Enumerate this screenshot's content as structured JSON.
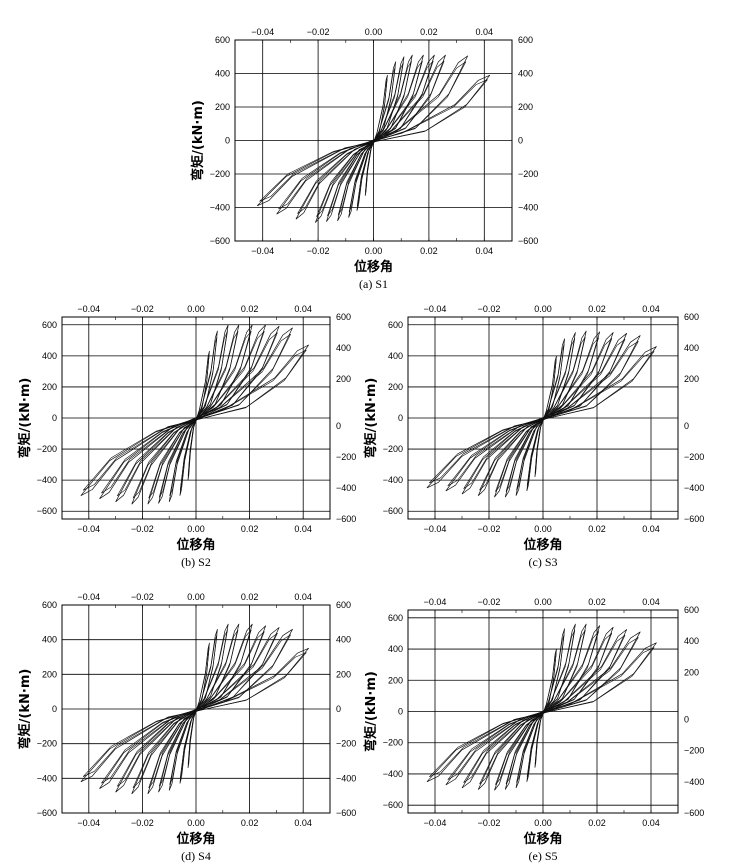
{
  "chart_data": [
    {
      "type": "line",
      "caption": "(a) S1",
      "xlabel": "位移角",
      "ylabel": "弯矩/(kN·m)",
      "xlim": [
        -0.05,
        0.05
      ],
      "ylim": [
        -600,
        600
      ],
      "xticks": [
        "-0.04",
        "-0.02",
        "0.00",
        "0.02",
        "0.04"
      ],
      "yticks": [
        "600",
        "400",
        "200",
        "0",
        "-200",
        "-400",
        "-600"
      ],
      "grid": true,
      "peak_positive": [
        [
          0.005,
          390
        ],
        [
          0.008,
          470
        ],
        [
          0.011,
          500
        ],
        [
          0.014,
          510
        ],
        [
          0.018,
          510
        ],
        [
          0.022,
          510
        ],
        [
          0.026,
          510
        ],
        [
          0.034,
          505
        ],
        [
          0.042,
          390
        ]
      ],
      "peak_negative": [
        [
          -0.003,
          -330
        ],
        [
          -0.006,
          -420
        ],
        [
          -0.009,
          -460
        ],
        [
          -0.013,
          -480
        ],
        [
          -0.017,
          -485
        ],
        [
          -0.021,
          -490
        ],
        [
          -0.028,
          -470
        ],
        [
          -0.035,
          -440
        ],
        [
          -0.042,
          -390
        ]
      ]
    },
    {
      "type": "line",
      "caption": "(b) S2",
      "xlabel": "位移角",
      "ylabel": "弯矩/(kN·m)",
      "xlim": [
        -0.05,
        0.05
      ],
      "ylim": [
        -650,
        650
      ],
      "xticks": [
        "-0.04",
        "-0.02",
        "0.00",
        "0.02",
        "0.04"
      ],
      "yticks": [
        "600",
        "400",
        "200",
        "0",
        "-200",
        "-400",
        "-600"
      ],
      "grid": true,
      "peak_positive": [
        [
          0.005,
          430
        ],
        [
          0.008,
          560
        ],
        [
          0.012,
          600
        ],
        [
          0.016,
          600
        ],
        [
          0.021,
          600
        ],
        [
          0.026,
          600
        ],
        [
          0.031,
          590
        ],
        [
          0.036,
          580
        ],
        [
          0.042,
          470
        ]
      ],
      "peak_negative": [
        [
          -0.003,
          -400
        ],
        [
          -0.006,
          -500
        ],
        [
          -0.01,
          -540
        ],
        [
          -0.014,
          -550
        ],
        [
          -0.018,
          -555
        ],
        [
          -0.024,
          -555
        ],
        [
          -0.03,
          -540
        ],
        [
          -0.036,
          -520
        ],
        [
          -0.043,
          -500
        ]
      ]
    },
    {
      "type": "line",
      "caption": "(c) S3",
      "xlabel": "位移角",
      "ylabel": "弯矩/(kN·m)",
      "xlim": [
        -0.05,
        0.05
      ],
      "ylim": [
        -650,
        650
      ],
      "xticks": [
        "-0.04",
        "-0.02",
        "0.00",
        "0.02",
        "0.04"
      ],
      "yticks": [
        "600",
        "400",
        "200",
        "0",
        "-200",
        "-400",
        "-600"
      ],
      "grid": true,
      "peak_positive": [
        [
          0.005,
          400
        ],
        [
          0.008,
          510
        ],
        [
          0.012,
          550
        ],
        [
          0.016,
          560
        ],
        [
          0.021,
          555
        ],
        [
          0.026,
          550
        ],
        [
          0.031,
          545
        ],
        [
          0.036,
          530
        ],
        [
          0.042,
          460
        ]
      ],
      "peak_negative": [
        [
          -0.003,
          -380
        ],
        [
          -0.006,
          -470
        ],
        [
          -0.01,
          -500
        ],
        [
          -0.014,
          -510
        ],
        [
          -0.018,
          -510
        ],
        [
          -0.024,
          -500
        ],
        [
          -0.03,
          -490
        ],
        [
          -0.036,
          -470
        ],
        [
          -0.043,
          -450
        ]
      ]
    },
    {
      "type": "line",
      "caption": "(d) S4",
      "xlabel": "位移角",
      "ylabel": "弯矩/(kN·m)",
      "xlim": [
        -0.05,
        0.05
      ],
      "ylim": [
        -600,
        600
      ],
      "xticks": [
        "-0.04",
        "-0.02",
        "0.00",
        "0.02",
        "0.04"
      ],
      "yticks": [
        "600",
        "400",
        "200",
        "0",
        "-200",
        "-400",
        "-600"
      ],
      "grid": true,
      "peak_positive": [
        [
          0.005,
          380
        ],
        [
          0.008,
          460
        ],
        [
          0.012,
          490
        ],
        [
          0.016,
          490
        ],
        [
          0.021,
          490
        ],
        [
          0.026,
          480
        ],
        [
          0.031,
          470
        ],
        [
          0.036,
          460
        ],
        [
          0.042,
          350
        ]
      ],
      "peak_negative": [
        [
          -0.003,
          -340
        ],
        [
          -0.006,
          -430
        ],
        [
          -0.01,
          -470
        ],
        [
          -0.014,
          -480
        ],
        [
          -0.018,
          -490
        ],
        [
          -0.024,
          -490
        ],
        [
          -0.03,
          -480
        ],
        [
          -0.036,
          -460
        ],
        [
          -0.043,
          -420
        ]
      ]
    },
    {
      "type": "line",
      "caption": "(e) S5",
      "xlabel": "位移角",
      "ylabel": "弯矩/(kN·m)",
      "xlim": [
        -0.05,
        0.05
      ],
      "ylim": [
        -650,
        650
      ],
      "xticks": [
        "-0.04",
        "-0.02",
        "0.00",
        "0.02",
        "0.04"
      ],
      "yticks": [
        "600",
        "400",
        "200",
        "0",
        "-200",
        "-400",
        "-600"
      ],
      "grid": true,
      "peak_positive": [
        [
          0.005,
          400
        ],
        [
          0.008,
          530
        ],
        [
          0.012,
          560
        ],
        [
          0.016,
          560
        ],
        [
          0.021,
          550
        ],
        [
          0.026,
          540
        ],
        [
          0.031,
          525
        ],
        [
          0.036,
          510
        ],
        [
          0.042,
          440
        ]
      ],
      "peak_negative": [
        [
          -0.003,
          -360
        ],
        [
          -0.006,
          -450
        ],
        [
          -0.01,
          -490
        ],
        [
          -0.014,
          -500
        ],
        [
          -0.018,
          -505
        ],
        [
          -0.024,
          -500
        ],
        [
          -0.03,
          -490
        ],
        [
          -0.036,
          -470
        ],
        [
          -0.043,
          -450
        ]
      ]
    }
  ]
}
